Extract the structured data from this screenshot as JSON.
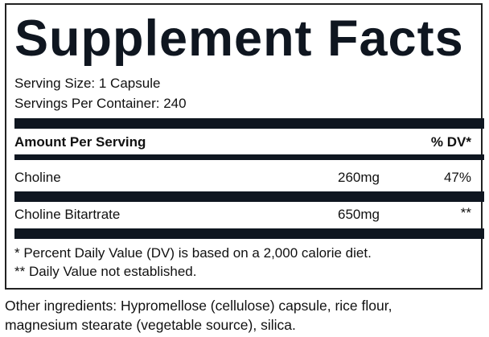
{
  "title": "Supplement Facts",
  "serving_size": "Serving Size: 1 Capsule",
  "servings_per_container": "Servings Per Container: 240",
  "header": {
    "amount": "Amount Per Serving",
    "dv": "% DV*"
  },
  "rows": [
    {
      "name": "Choline",
      "amount": "260mg",
      "dv": "47%"
    },
    {
      "name": "Choline Bitartrate",
      "amount": "650mg",
      "dv": "**"
    }
  ],
  "footnotes": [
    "* Percent Daily Value (DV) is based on a 2,000 calorie diet.",
    "** Daily Value not established."
  ],
  "other_ingredients": [
    "Other ingredients: Hypromellose (cellulose) capsule, rice flour,",
    "magnesium stearate (vegetable source), silica."
  ]
}
